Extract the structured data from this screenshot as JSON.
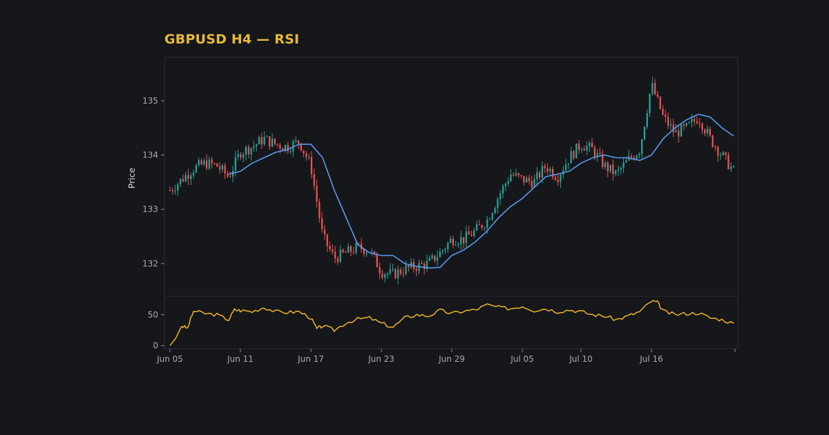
{
  "chart_data": {
    "type": "candlestick",
    "title": "GBPUSD H4 — RSI",
    "price_panel": {
      "ylabel": "Price",
      "ylim": [
        131.4,
        135.8
      ],
      "yticks": [
        132,
        133,
        134,
        135
      ],
      "up_color": "#26a69a",
      "down_color": "#ef5350",
      "ma_color": "#5b9bf0",
      "grid": false,
      "candles_approx_close_path": [
        {
          "date": "Jun 05",
          "close": 133.35
        },
        {
          "date": "Jun 06",
          "close": 133.55
        },
        {
          "date": "Jun 07",
          "close": 133.75
        },
        {
          "date": "Jun 08",
          "close": 133.85
        },
        {
          "date": "Jun 09",
          "close": 133.8
        },
        {
          "date": "Jun 10",
          "close": 133.6
        },
        {
          "date": "Jun 11",
          "close": 134.05
        },
        {
          "date": "Jun 12",
          "close": 134.15
        },
        {
          "date": "Jun 13",
          "close": 134.3
        },
        {
          "date": "Jun 14",
          "close": 134.2
        },
        {
          "date": "Jun 15",
          "close": 134.15
        },
        {
          "date": "Jun 16",
          "close": 134.25
        },
        {
          "date": "Jun 17",
          "close": 133.8
        },
        {
          "date": "Jun 18",
          "close": 132.5
        },
        {
          "date": "Jun 19",
          "close": 132.1
        },
        {
          "date": "Jun 20",
          "close": 132.2
        },
        {
          "date": "Jun 21",
          "close": 132.3
        },
        {
          "date": "Jun 22",
          "close": 132.25
        },
        {
          "date": "Jun 23",
          "close": 131.85
        },
        {
          "date": "Jun 24",
          "close": 131.8
        },
        {
          "date": "Jun 25",
          "close": 131.9
        },
        {
          "date": "Jun 26",
          "close": 131.95
        },
        {
          "date": "Jun 27",
          "close": 132.0
        },
        {
          "date": "Jun 28",
          "close": 132.2
        },
        {
          "date": "Jun 29",
          "close": 132.45
        },
        {
          "date": "Jun 30",
          "close": 132.45
        },
        {
          "date": "Jul 01",
          "close": 132.6
        },
        {
          "date": "Jul 02",
          "close": 132.8
        },
        {
          "date": "Jul 03",
          "close": 133.25
        },
        {
          "date": "Jul 04",
          "close": 133.65
        },
        {
          "date": "Jul 05",
          "close": 133.55
        },
        {
          "date": "Jul 06",
          "close": 133.5
        },
        {
          "date": "Jul 07",
          "close": 133.8
        },
        {
          "date": "Jul 08",
          "close": 133.6
        },
        {
          "date": "Jul 09",
          "close": 133.95
        },
        {
          "date": "Jul 10",
          "close": 134.2
        },
        {
          "date": "Jul 11",
          "close": 134.1
        },
        {
          "date": "Jul 12",
          "close": 133.8
        },
        {
          "date": "Jul 13",
          "close": 133.65
        },
        {
          "date": "Jul 14",
          "close": 133.9
        },
        {
          "date": "Jul 15",
          "close": 134.1
        },
        {
          "date": "Jul 16",
          "close": 135.3
        },
        {
          "date": "Jul 17",
          "close": 134.7
        },
        {
          "date": "Jul 18",
          "close": 134.4
        },
        {
          "date": "Jul 19",
          "close": 134.5
        },
        {
          "date": "Jul 20",
          "close": 134.7
        },
        {
          "date": "Jul 21",
          "close": 134.3
        },
        {
          "date": "Jul 22",
          "close": 134.0
        },
        {
          "date": "Jul 23",
          "close": 133.7
        }
      ],
      "moving_average_approx": [
        {
          "date": "Jun 10",
          "value": 133.65
        },
        {
          "date": "Jun 11",
          "value": 133.7
        },
        {
          "date": "Jun 12",
          "value": 133.85
        },
        {
          "date": "Jun 13",
          "value": 133.95
        },
        {
          "date": "Jun 14",
          "value": 134.05
        },
        {
          "date": "Jun 15",
          "value": 134.1
        },
        {
          "date": "Jun 16",
          "value": 134.2
        },
        {
          "date": "Jun 17",
          "value": 134.2
        },
        {
          "date": "Jun 18",
          "value": 133.95
        },
        {
          "date": "Jun 19",
          "value": 133.35
        },
        {
          "date": "Jun 20",
          "value": 132.85
        },
        {
          "date": "Jun 21",
          "value": 132.35
        },
        {
          "date": "Jun 22",
          "value": 132.2
        },
        {
          "date": "Jun 23",
          "value": 132.15
        },
        {
          "date": "Jun 24",
          "value": 132.15
        },
        {
          "date": "Jun 25",
          "value": 132.0
        },
        {
          "date": "Jun 26",
          "value": 131.95
        },
        {
          "date": "Jun 27",
          "value": 131.92
        },
        {
          "date": "Jun 28",
          "value": 131.93
        },
        {
          "date": "Jun 29",
          "value": 132.15
        },
        {
          "date": "Jun 30",
          "value": 132.25
        },
        {
          "date": "Jul 01",
          "value": 132.4
        },
        {
          "date": "Jul 02",
          "value": 132.6
        },
        {
          "date": "Jul 03",
          "value": 132.85
        },
        {
          "date": "Jul 04",
          "value": 133.05
        },
        {
          "date": "Jul 05",
          "value": 133.2
        },
        {
          "date": "Jul 06",
          "value": 133.4
        },
        {
          "date": "Jul 07",
          "value": 133.6
        },
        {
          "date": "Jul 08",
          "value": 133.65
        },
        {
          "date": "Jul 09",
          "value": 133.7
        },
        {
          "date": "Jul 10",
          "value": 133.85
        },
        {
          "date": "Jul 11",
          "value": 133.95
        },
        {
          "date": "Jul 12",
          "value": 134.0
        },
        {
          "date": "Jul 13",
          "value": 133.95
        },
        {
          "date": "Jul 14",
          "value": 133.95
        },
        {
          "date": "Jul 15",
          "value": 133.9
        },
        {
          "date": "Jul 16",
          "value": 134.0
        },
        {
          "date": "Jul 17",
          "value": 134.3
        },
        {
          "date": "Jul 18",
          "value": 134.5
        },
        {
          "date": "Jul 19",
          "value": 134.65
        },
        {
          "date": "Jul 20",
          "value": 134.75
        },
        {
          "date": "Jul 21",
          "value": 134.7
        },
        {
          "date": "Jul 22",
          "value": 134.5
        },
        {
          "date": "Jul 23",
          "value": 134.35
        }
      ]
    },
    "rsi_panel": {
      "yticks": [
        0,
        50
      ],
      "ylim": [
        -5,
        80
      ],
      "line_color": "#f0b429",
      "values_approx": [
        {
          "date": "Jun 05",
          "value": 0
        },
        {
          "date": "Jun 05.5",
          "value": 12
        },
        {
          "date": "Jun 06",
          "value": 32
        },
        {
          "date": "Jun 06.5",
          "value": 28
        },
        {
          "date": "Jun 07",
          "value": 56
        },
        {
          "date": "Jun 08",
          "value": 52
        },
        {
          "date": "Jun 09",
          "value": 50
        },
        {
          "date": "Jun 10",
          "value": 42
        },
        {
          "date": "Jun 10.5",
          "value": 58
        },
        {
          "date": "Jun 11",
          "value": 57
        },
        {
          "date": "Jun 12",
          "value": 55
        },
        {
          "date": "Jun 13",
          "value": 62
        },
        {
          "date": "Jun 14",
          "value": 55
        },
        {
          "date": "Jun 15",
          "value": 54
        },
        {
          "date": "Jun 16",
          "value": 55
        },
        {
          "date": "Jun 17",
          "value": 45
        },
        {
          "date": "Jun 17.5",
          "value": 27
        },
        {
          "date": "Jun 18",
          "value": 32
        },
        {
          "date": "Jun 19",
          "value": 25
        },
        {
          "date": "Jun 20",
          "value": 37
        },
        {
          "date": "Jun 21",
          "value": 43
        },
        {
          "date": "Jun 22",
          "value": 45
        },
        {
          "date": "Jun 23",
          "value": 36
        },
        {
          "date": "Jun 24",
          "value": 30
        },
        {
          "date": "Jun 25",
          "value": 45
        },
        {
          "date": "Jun 26",
          "value": 50
        },
        {
          "date": "Jun 27",
          "value": 48
        },
        {
          "date": "Jun 28",
          "value": 57
        },
        {
          "date": "Jun 29",
          "value": 52
        },
        {
          "date": "Jun 30",
          "value": 56
        },
        {
          "date": "Jul 01",
          "value": 58
        },
        {
          "date": "Jul 02",
          "value": 66
        },
        {
          "date": "Jul 03",
          "value": 62
        },
        {
          "date": "Jul 04",
          "value": 60
        },
        {
          "date": "Jul 05",
          "value": 64
        },
        {
          "date": "Jul 06",
          "value": 57
        },
        {
          "date": "Jul 07",
          "value": 60
        },
        {
          "date": "Jul 08",
          "value": 55
        },
        {
          "date": "Jul 09",
          "value": 58
        },
        {
          "date": "Jul 10",
          "value": 55
        },
        {
          "date": "Jul 11",
          "value": 50
        },
        {
          "date": "Jul 12",
          "value": 48
        },
        {
          "date": "Jul 13",
          "value": 42
        },
        {
          "date": "Jul 14",
          "value": 48
        },
        {
          "date": "Jul 15",
          "value": 55
        },
        {
          "date": "Jul 16",
          "value": 72
        },
        {
          "date": "Jul 16.5",
          "value": 70
        },
        {
          "date": "Jul 17",
          "value": 56
        },
        {
          "date": "Jul 18",
          "value": 50
        },
        {
          "date": "Jul 19",
          "value": 52
        },
        {
          "date": "Jul 20",
          "value": 53
        },
        {
          "date": "Jul 21",
          "value": 45
        },
        {
          "date": "Jul 22",
          "value": 42
        },
        {
          "date": "Jul 23",
          "value": 36
        }
      ]
    },
    "x_axis": {
      "ticks": [
        "Jun 05",
        "Jun 11",
        "Jun 17",
        "Jun 23",
        "Jun 29",
        "Jul 05",
        "Jul 10",
        "Jul 16"
      ],
      "xlim": [
        "Jun 05",
        "Jul 23"
      ]
    }
  },
  "colors": {
    "background": "#16171b",
    "panel_border": "#2c2e36",
    "title": "#e8b93a",
    "tick_text": "#a8abb3"
  }
}
